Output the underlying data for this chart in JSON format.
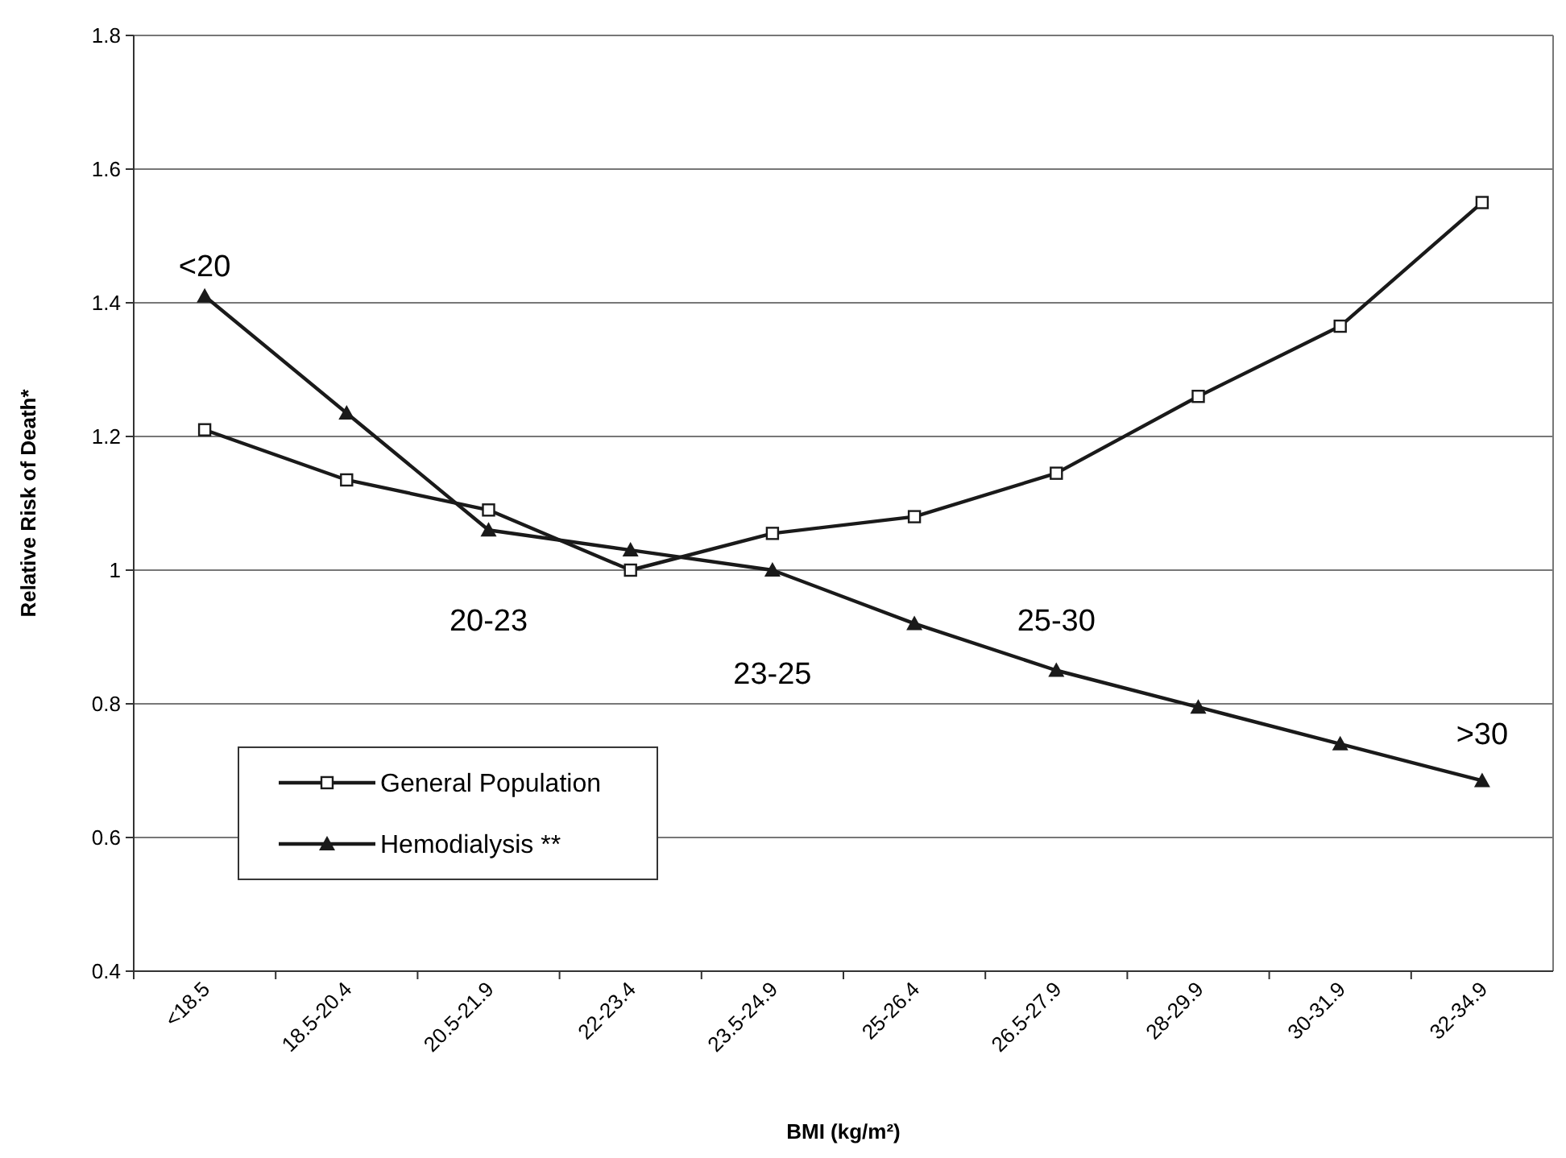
{
  "chart_data": {
    "type": "line",
    "xlabel": "BMI (kg/m²)",
    "ylabel": "Relative Risk of Death*",
    "categories": [
      "<18.5",
      "18.5-20.4",
      "20.5-21.9",
      "22-23.4",
      "23.5-24.9",
      "25-26.4",
      "26.5-27.9",
      "28-29.9",
      "30-31.9",
      "32-34.9"
    ],
    "series": [
      {
        "name": "General Population",
        "color": "#1a1a1a",
        "marker": "square",
        "values": [
          1.21,
          1.135,
          1.09,
          1.0,
          1.055,
          1.08,
          1.145,
          1.26,
          1.365,
          1.55
        ]
      },
      {
        "name": "Hemodialysis **",
        "color": "#1a1a1a",
        "marker": "triangle",
        "values": [
          1.41,
          1.235,
          1.06,
          1.03,
          1.0,
          0.92,
          0.85,
          0.795,
          0.74,
          0.685
        ]
      }
    ],
    "ylim": [
      0.4,
      1.8
    ],
    "yticks": [
      0.4,
      0.6,
      0.8,
      1,
      1.2,
      1.4,
      1.6,
      1.8
    ],
    "grid": "y",
    "legend": "bottom left",
    "line_style": "solid",
    "annotations": [
      "<20",
      "20-23",
      "23-25",
      "25-30",
      ">30"
    ]
  }
}
